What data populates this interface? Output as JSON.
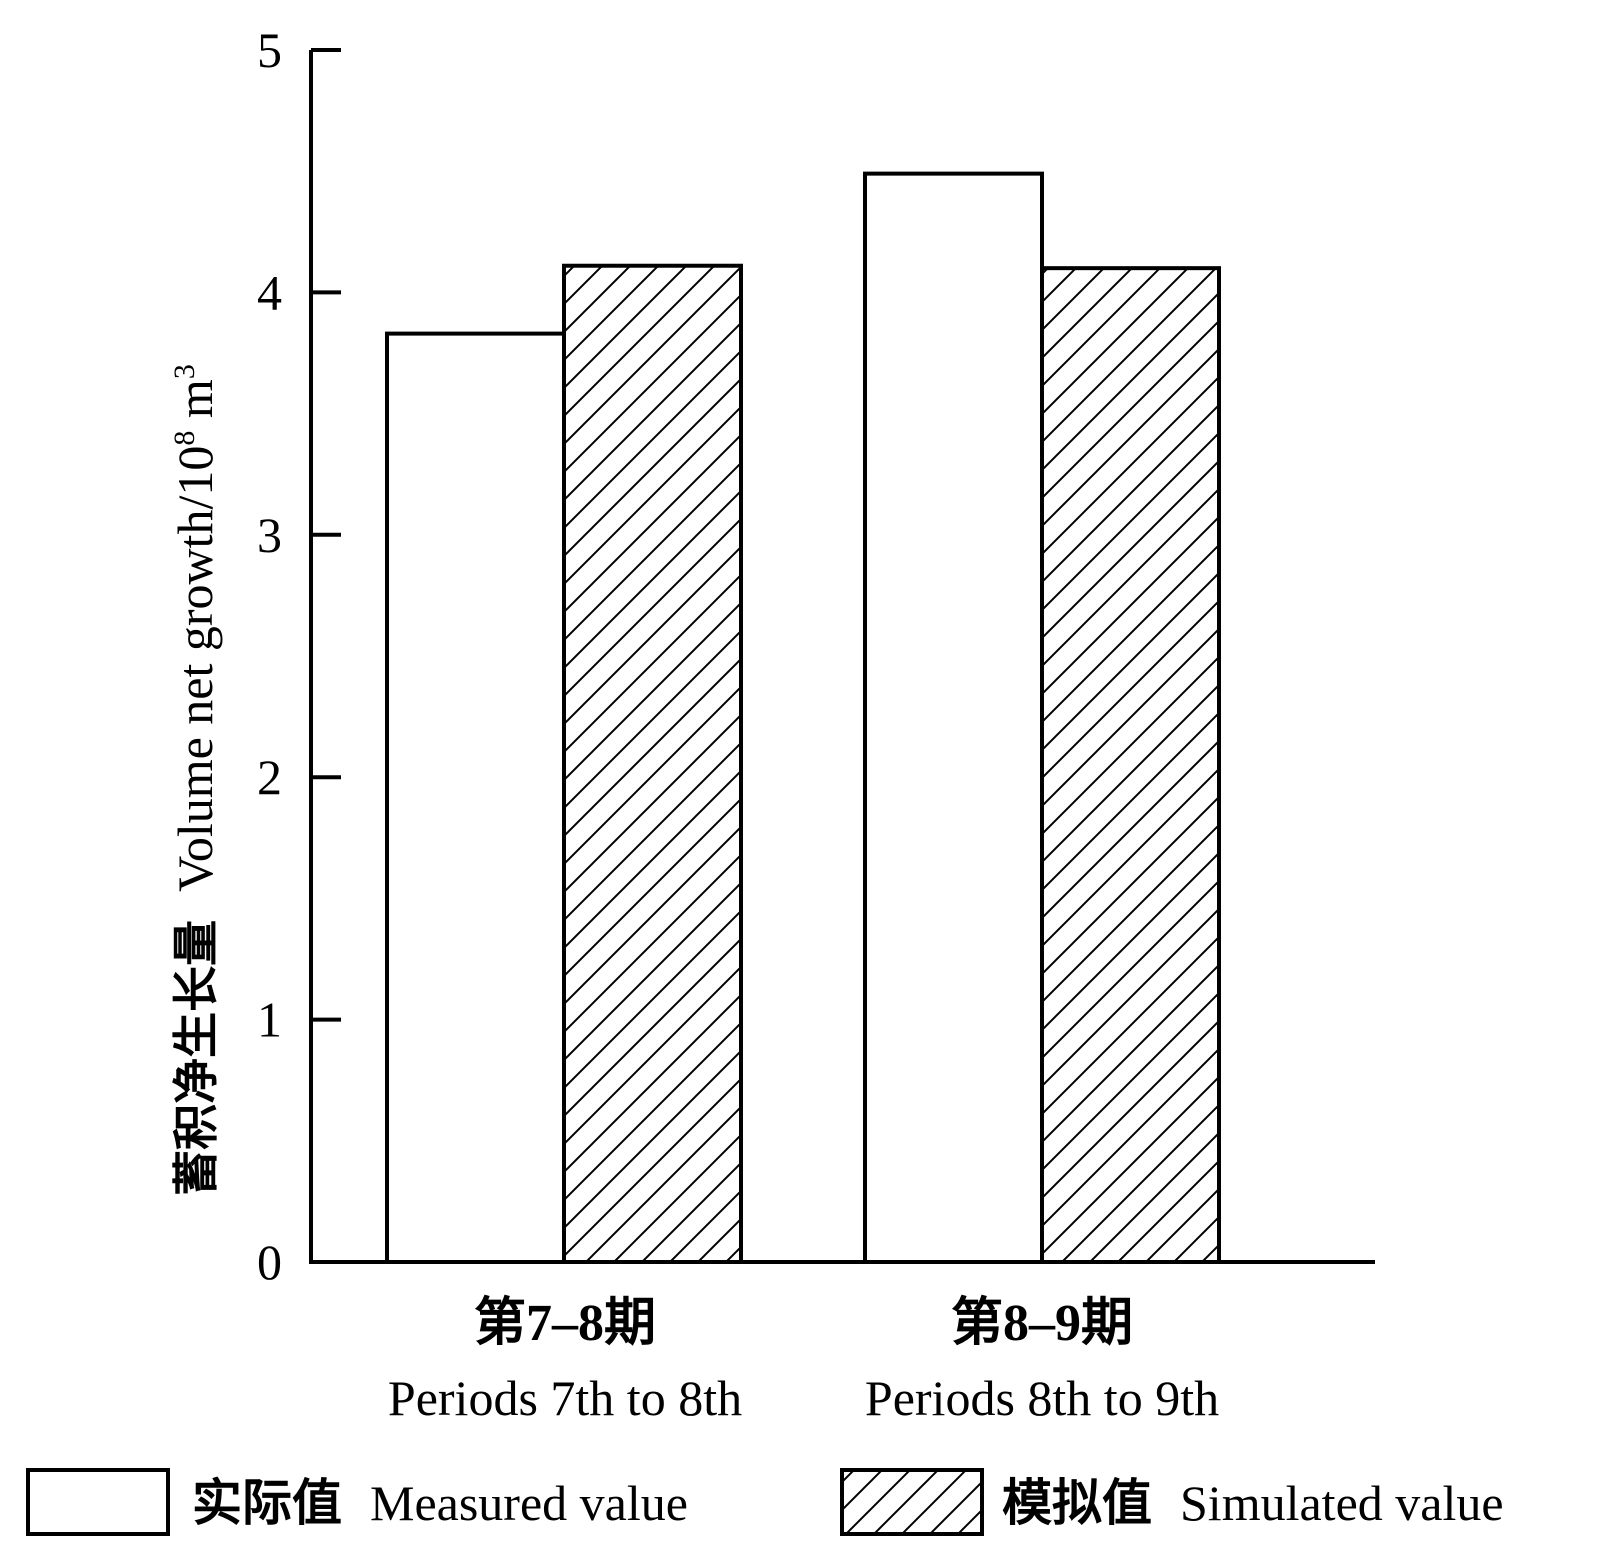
{
  "chart_data": {
    "type": "bar",
    "categories": [
      {
        "cn": "第7–8期",
        "en": "Periods 7th to 8th"
      },
      {
        "cn": "第8–9期",
        "en": "Periods 8th to 9th"
      }
    ],
    "series": [
      {
        "name_cn": "实际值",
        "name_en": "Measured value",
        "pattern": "none",
        "values": [
          3.83,
          4.49
        ]
      },
      {
        "name_cn": "模拟值",
        "name_en": "Simulated value",
        "pattern": "hatch",
        "values": [
          4.11,
          4.1
        ]
      }
    ],
    "ylabel": {
      "cn": "蓄积净生长量",
      "en": "Volume net growth/10",
      "exp1": "8",
      "unit": " m",
      "exp2": "3"
    },
    "xlabel": "",
    "ylim": [
      0,
      5
    ],
    "yticks": [
      "0",
      "1",
      "2",
      "3",
      "4",
      "5"
    ],
    "legend_position": "bottom",
    "grid": false,
    "colors": {
      "axis": "#000000",
      "bar_fill": "#ffffff",
      "hatch": "#000000"
    }
  }
}
